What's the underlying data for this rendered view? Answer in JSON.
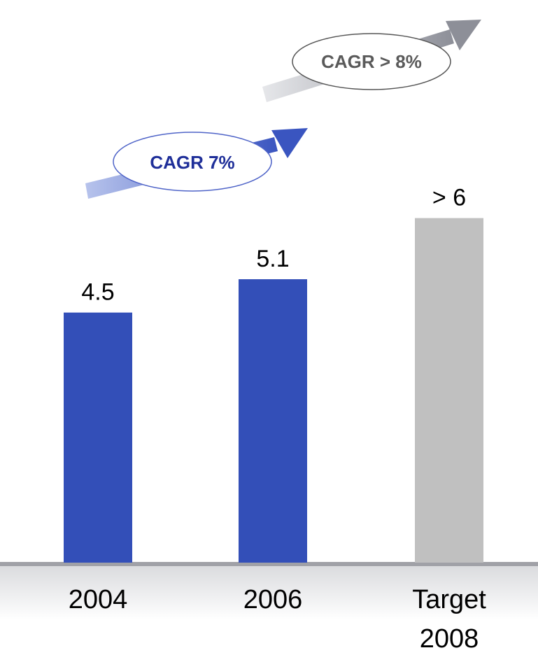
{
  "chart_data": {
    "type": "bar",
    "categories": [
      {
        "line1": "2004",
        "line2": ""
      },
      {
        "line1": "2006",
        "line2": ""
      },
      {
        "line1": "Target",
        "line2": "2008"
      }
    ],
    "values": [
      4.5,
      5.1,
      6.2
    ],
    "value_labels": [
      "4.5",
      "5.1",
      "> 6"
    ],
    "colors": [
      "#334fb8",
      "#334fb8",
      "#c0c0c0"
    ],
    "ylim": [
      0,
      6.8
    ],
    "title": "",
    "xlabel": "",
    "ylabel": "",
    "annotations": [
      {
        "label": "CAGR 7%",
        "text_color": "#1f2f99",
        "arrow_color": "#3a55c0"
      },
      {
        "label": "CAGR > 8%",
        "text_color": "#5a5a5a",
        "arrow_color": "#8d8f98"
      }
    ]
  }
}
